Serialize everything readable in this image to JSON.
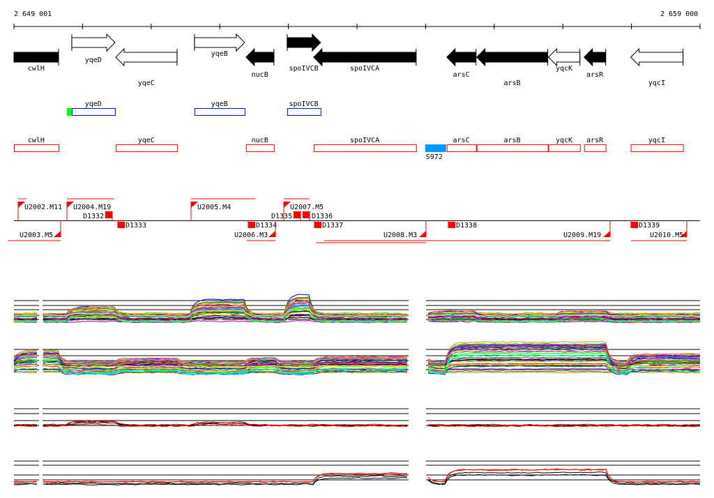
{
  "ruler": {
    "start_label": "2 649 001",
    "end_label": "2 659 000",
    "start_bp": 2649001,
    "end_bp": 2659000,
    "tick_count": 11
  },
  "genes": [
    {
      "name": "cwlH",
      "start": 2649001,
      "end": 2649651,
      "strand": "none",
      "filled": true,
      "row": "lower"
    },
    {
      "name": "yqeD",
      "start": 2649844,
      "end": 2650474,
      "strand": "+",
      "filled": false,
      "row": "upper"
    },
    {
      "name": "yqeC",
      "start": 2650484,
      "end": 2651378,
      "strand": "-",
      "filled": false,
      "row": "lower"
    },
    {
      "name": "yqeB",
      "start": 2651632,
      "end": 2652363,
      "strand": "+",
      "filled": false,
      "row": "upper"
    },
    {
      "name": "nucB",
      "start": 2652383,
      "end": 2652790,
      "strand": "-",
      "filled": true,
      "row": "lower"
    },
    {
      "name": "spoIVCB",
      "start": 2652983,
      "end": 2653470,
      "strand": "+",
      "filled": true,
      "row": "upper"
    },
    {
      "name": "spoIVCA",
      "start": 2653369,
      "end": 2654862,
      "strand": "-",
      "filled": true,
      "row": "lower"
    },
    {
      "name": "arsC",
      "start": 2655309,
      "end": 2655735,
      "strand": "-",
      "filled": true,
      "row": "lower"
    },
    {
      "name": "arsB",
      "start": 2655745,
      "end": 2656781,
      "strand": "-",
      "filled": true,
      "row": "lower"
    },
    {
      "name": "yqcK",
      "start": 2656791,
      "end": 2657249,
      "strand": "-",
      "filled": false,
      "row": "lower"
    },
    {
      "name": "arsR",
      "start": 2657310,
      "end": 2657625,
      "strand": "-",
      "filled": true,
      "row": "lower"
    },
    {
      "name": "yqcI",
      "start": 2657990,
      "end": 2658752,
      "strand": "-",
      "filled": false,
      "row": "lower"
    }
  ],
  "forward_features": [
    {
      "name": "yqeD",
      "start": 2649844,
      "end": 2650474,
      "marker_start": 2649773
    },
    {
      "name": "yqeB",
      "start": 2651632,
      "end": 2652363
    },
    {
      "name": "spoIVCB",
      "start": 2652983,
      "end": 2653470
    }
  ],
  "reverse_features": [
    {
      "name": "cwlH",
      "start": 2649001,
      "end": 2649651
    },
    {
      "name": "yqeC",
      "start": 2650484,
      "end": 2651378
    },
    {
      "name": "nucB",
      "start": 2652383,
      "end": 2652790
    },
    {
      "name": "spoIVCA",
      "start": 2653369,
      "end": 2654862
    },
    {
      "name": "arsC",
      "start": 2655309,
      "end": 2655735
    },
    {
      "name": "arsB",
      "start": 2655745,
      "end": 2656781
    },
    {
      "name": "yqcK",
      "start": 2656791,
      "end": 2657249
    },
    {
      "name": "arsR",
      "start": 2657310,
      "end": 2657625
    },
    {
      "name": "yqcI",
      "start": 2657990,
      "end": 2658752
    }
  ],
  "srna": {
    "name": "S972",
    "start": 2654994,
    "end": 2655299
  },
  "upper_markers": [
    "U2002.M11",
    "U2004.M19",
    "U2005.M4",
    "U2007.M5"
  ],
  "lower_markers": [
    "U2003.M5",
    "U2006.M3",
    "U2008.M3",
    "U2009.M19",
    "U2010.M5"
  ],
  "d_markers_above": [
    "D1332",
    "D1335",
    "D1336"
  ],
  "d_markers_below": [
    "D1333",
    "D1334",
    "D1337",
    "D1338",
    "D1339"
  ],
  "colors": {
    "forward": "#0000ff",
    "reverse": "#ff0000",
    "start_marker": "#00ff00",
    "srna": "#0099ff",
    "marker": "#ff0000"
  }
}
